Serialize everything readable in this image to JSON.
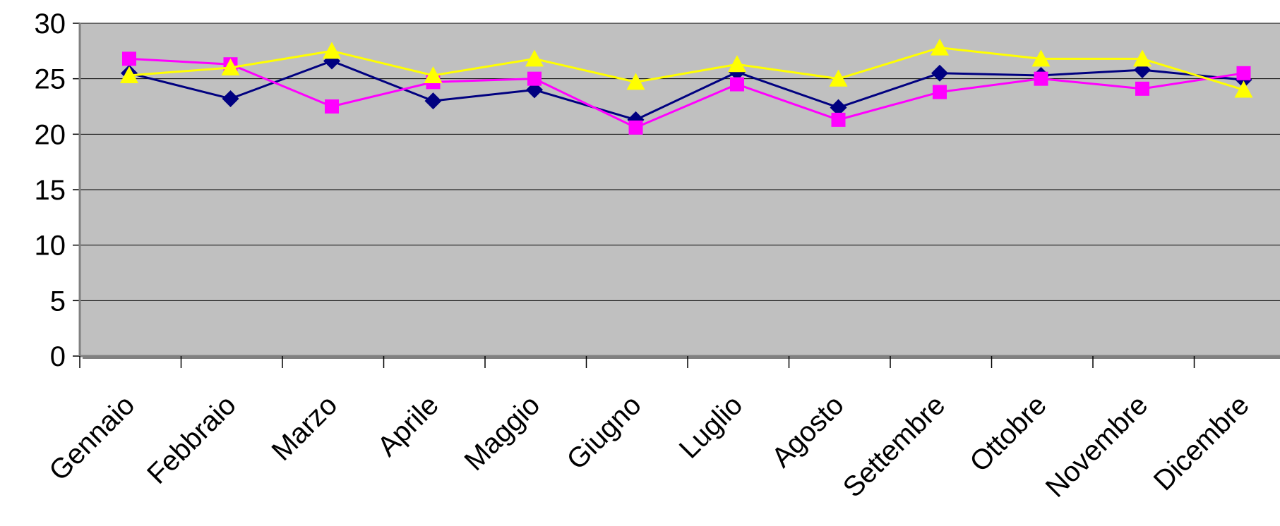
{
  "chart_data": {
    "type": "line",
    "title": "",
    "xlabel": "",
    "ylabel": "",
    "ylim": [
      0,
      30
    ],
    "yticks": [
      "0",
      "5",
      "10",
      "15",
      "20",
      "25",
      "30"
    ],
    "grid": true,
    "legend": false,
    "plot_background": "#c0c0c0",
    "categories": [
      "Gennaio",
      "Febbraio",
      "Marzo",
      "Aprile",
      "Maggio",
      "Giugno",
      "Luglio",
      "Agosto",
      "Settembre",
      "Ottobre",
      "Novembre",
      "Dicembre"
    ],
    "series": [
      {
        "color": "#000080",
        "marker": "diamond",
        "values": [
          25.5,
          23.2,
          26.6,
          23.0,
          24.0,
          21.3,
          25.6,
          22.4,
          25.5,
          25.3,
          25.8,
          24.9
        ]
      },
      {
        "color": "#ff00ff",
        "marker": "square",
        "values": [
          26.8,
          26.3,
          22.5,
          24.7,
          25.0,
          20.6,
          24.5,
          21.3,
          23.8,
          25.0,
          24.1,
          25.5
        ]
      },
      {
        "color": "#ffff00",
        "marker": "triangle",
        "values": [
          25.3,
          26.0,
          27.5,
          25.3,
          26.8,
          24.7,
          26.3,
          25.0,
          27.8,
          26.8,
          26.8,
          24.0
        ]
      }
    ]
  }
}
